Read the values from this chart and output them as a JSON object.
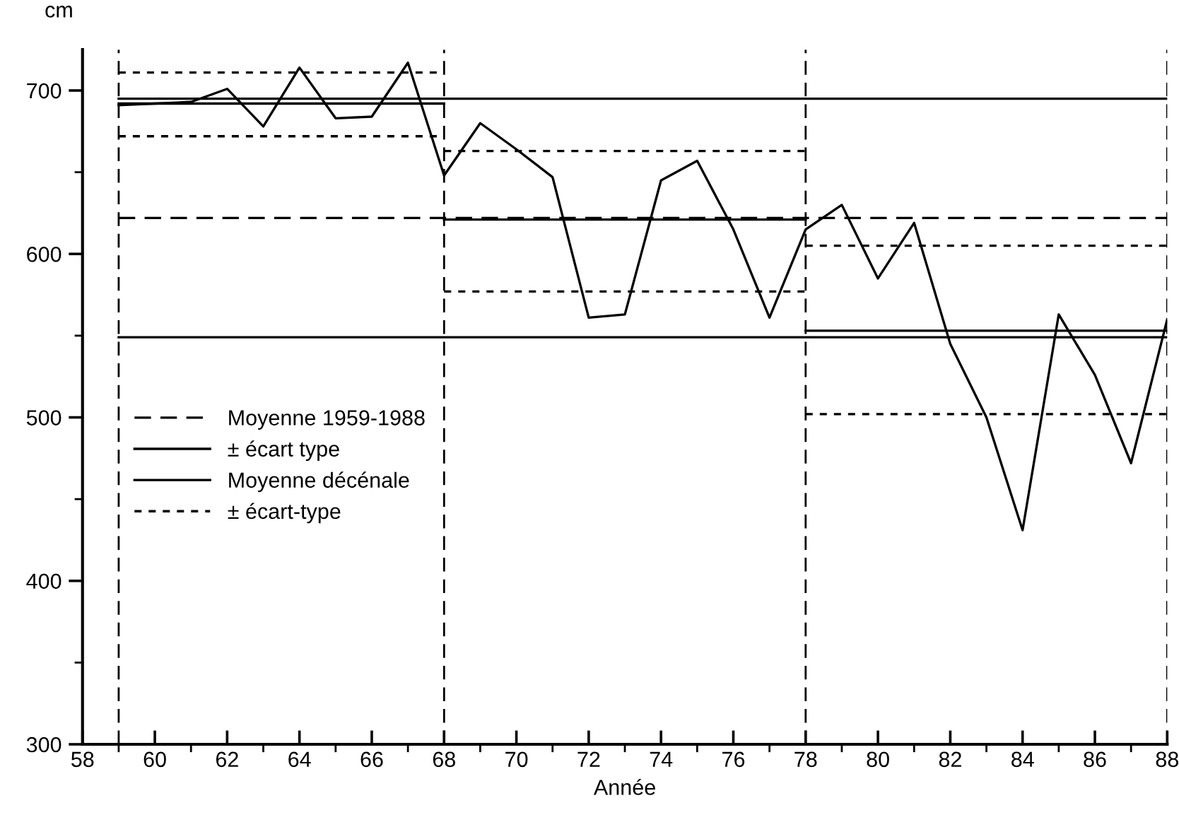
{
  "chart_data": {
    "type": "line",
    "ylabel": "cm",
    "xlabel": "Année",
    "xlim": [
      58,
      88
    ],
    "ylim": [
      300,
      725
    ],
    "xticks": [
      58,
      {
        "value": 59,
        "label": null
      },
      60,
      {
        "value": 61,
        "label": null
      },
      62,
      {
        "value": 63,
        "label": null
      },
      64,
      {
        "value": 65,
        "label": null
      },
      66,
      {
        "value": 67,
        "label": null
      },
      68,
      {
        "value": 69,
        "label": null
      },
      70,
      {
        "value": 71,
        "label": null
      },
      72,
      {
        "value": 73,
        "label": null
      },
      74,
      {
        "value": 75,
        "label": null
      },
      76,
      {
        "value": 77,
        "label": null
      },
      78,
      {
        "value": 79,
        "label": null
      },
      80,
      {
        "value": 81,
        "label": null
      },
      82,
      {
        "value": 83,
        "label": null
      },
      84,
      {
        "value": 85,
        "label": null
      },
      86,
      {
        "value": 87,
        "label": null
      },
      88
    ],
    "yticks": [
      300,
      {
        "value": 350,
        "label": null
      },
      400,
      {
        "value": 450,
        "label": null
      },
      500,
      {
        "value": 550,
        "label": null
      },
      600,
      {
        "value": 650,
        "label": null
      },
      700
    ],
    "grid": false,
    "legend": "center left",
    "marker": "none",
    "series": [
      {
        "color": "#000000",
        "line_style": "solid",
        "x": [
          59,
          60,
          61,
          62,
          63,
          64,
          65,
          66,
          67,
          68,
          69,
          70,
          71,
          72,
          73,
          74,
          75,
          76,
          77,
          78,
          79,
          80,
          81,
          82,
          83,
          84,
          85,
          86,
          87,
          88
        ],
        "values": [
          691,
          692,
          693,
          701,
          678,
          714,
          683,
          684,
          717,
          648,
          680,
          664,
          647,
          561,
          563,
          645,
          657,
          615,
          561,
          615,
          630,
          585,
          619,
          545,
          500,
          431,
          563,
          526,
          472,
          560
        ]
      },
      {
        "name": "Moyenne 1959-1988",
        "color": "#000000",
        "line_style": "dashed",
        "x": [
          59,
          88
        ],
        "values": [
          622,
          622
        ]
      },
      {
        "name": "± écart type",
        "color": "#000000",
        "line_style": "solid",
        "x": [
          59,
          88
        ],
        "values": [
          695,
          695
        ]
      },
      {
        "color": "#000000",
        "line_style": "solid",
        "x": [
          59,
          88
        ],
        "values": [
          549,
          549
        ]
      },
      {
        "name": "Moyenne décénale",
        "color": "#000000",
        "line_style": "solid",
        "x": [
          59,
          68
        ],
        "values": [
          692,
          692
        ]
      },
      {
        "color": "#000000",
        "line_style": "solid",
        "x": [
          68,
          78
        ],
        "values": [
          621,
          621
        ]
      },
      {
        "color": "#000000",
        "line_style": "solid",
        "x": [
          78,
          88
        ],
        "values": [
          553,
          553
        ]
      },
      {
        "name": "± écart-type",
        "color": "#000000",
        "line_style": "dotted",
        "x": [
          59,
          68
        ],
        "values": [
          711,
          711
        ]
      },
      {
        "color": "#000000",
        "line_style": "dotted",
        "x": [
          59,
          68
        ],
        "values": [
          672,
          672
        ]
      },
      {
        "color": "#000000",
        "line_style": "dotted",
        "x": [
          68,
          78
        ],
        "values": [
          663,
          663
        ]
      },
      {
        "color": "#000000",
        "line_style": "dotted",
        "x": [
          68,
          78
        ],
        "values": [
          577,
          577
        ]
      },
      {
        "color": "#000000",
        "line_style": "dotted",
        "x": [
          78,
          88
        ],
        "values": [
          605,
          605
        ]
      },
      {
        "color": "#000000",
        "line_style": "dotted",
        "x": [
          78,
          88
        ],
        "values": [
          502,
          502
        ]
      }
    ],
    "ref_lines": [
      {
        "axis": "x",
        "value": 59,
        "line_style": "dashed",
        "color": "#000000"
      },
      {
        "axis": "x",
        "value": 68,
        "line_style": "dashed",
        "color": "#000000"
      },
      {
        "axis": "x",
        "value": 78,
        "line_style": "dashed",
        "color": "#000000"
      },
      {
        "axis": "x",
        "value": 88,
        "line_style": "dashed",
        "color": "#000000"
      }
    ]
  }
}
